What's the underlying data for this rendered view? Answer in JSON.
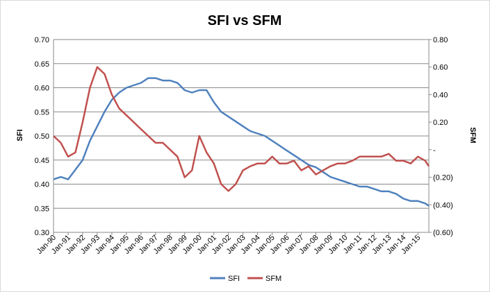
{
  "chart_data": {
    "type": "line",
    "title": "SFI vs SFM",
    "ylabel_left": "SFI",
    "ylabel_right": "SFM",
    "ylim_left": [
      0.3,
      0.7
    ],
    "ylim_right": [
      -0.6,
      0.8
    ],
    "yticks_left": [
      "0.30",
      "0.35",
      "0.40",
      "0.45",
      "0.50",
      "0.55",
      "0.60",
      "0.65",
      "0.70"
    ],
    "yticks_right": [
      "(0.60)",
      "(0.40)",
      "(0.20)",
      "-",
      "0.20",
      "0.40",
      "0.60",
      "0.80"
    ],
    "xticks": [
      "Jan-90",
      "Jan-91",
      "Jan-92",
      "Jan-93",
      "Jan-94",
      "Jan-95",
      "Jan-96",
      "Jan-97",
      "Jan-98",
      "Jan-99",
      "Jan-00",
      "Jan-01",
      "Jan-02",
      "Jan-03",
      "Jan-04",
      "Jan-05",
      "Jan-06",
      "Jan-07",
      "Jan-08",
      "Jan-09",
      "Jan-10",
      "Jan-11",
      "Jan-12",
      "Jan-13",
      "Jan-14",
      "Jan-15"
    ],
    "x_range": [
      1990.0,
      2015.75
    ],
    "grid": true,
    "legend_position": "bottom",
    "series": [
      {
        "name": "SFI",
        "axis": "left",
        "color": "#4f81bd",
        "x": [
          1990.0,
          1990.5,
          1991.0,
          1991.5,
          1992.0,
          1992.5,
          1993.0,
          1993.5,
          1994.0,
          1994.5,
          1995.0,
          1995.5,
          1996.0,
          1996.5,
          1997.0,
          1997.5,
          1998.0,
          1998.5,
          1999.0,
          1999.5,
          2000.0,
          2000.5,
          2001.0,
          2001.5,
          2002.0,
          2002.5,
          2003.0,
          2003.5,
          2004.0,
          2004.5,
          2005.0,
          2005.5,
          2006.0,
          2006.5,
          2007.0,
          2007.5,
          2008.0,
          2008.5,
          2009.0,
          2009.5,
          2010.0,
          2010.5,
          2011.0,
          2011.5,
          2012.0,
          2012.5,
          2013.0,
          2013.5,
          2014.0,
          2014.5,
          2015.0,
          2015.5,
          2015.75
        ],
        "values": [
          0.41,
          0.415,
          0.41,
          0.43,
          0.45,
          0.49,
          0.52,
          0.55,
          0.575,
          0.59,
          0.6,
          0.605,
          0.61,
          0.62,
          0.62,
          0.615,
          0.615,
          0.61,
          0.595,
          0.59,
          0.595,
          0.595,
          0.57,
          0.55,
          0.54,
          0.53,
          0.52,
          0.51,
          0.505,
          0.5,
          0.49,
          0.48,
          0.47,
          0.46,
          0.45,
          0.44,
          0.435,
          0.425,
          0.415,
          0.41,
          0.405,
          0.4,
          0.395,
          0.395,
          0.39,
          0.385,
          0.385,
          0.38,
          0.37,
          0.365,
          0.365,
          0.36,
          0.355
        ]
      },
      {
        "name": "SFM",
        "axis": "right",
        "color": "#c0504d",
        "x": [
          1990.0,
          1990.5,
          1991.0,
          1991.5,
          1992.0,
          1992.5,
          1993.0,
          1993.5,
          1994.0,
          1994.5,
          1995.0,
          1995.5,
          1996.0,
          1996.5,
          1997.0,
          1997.5,
          1998.0,
          1998.5,
          1999.0,
          1999.5,
          2000.0,
          2000.5,
          2001.0,
          2001.5,
          2002.0,
          2002.5,
          2003.0,
          2003.5,
          2004.0,
          2004.5,
          2005.0,
          2005.5,
          2006.0,
          2006.5,
          2007.0,
          2007.5,
          2008.0,
          2008.5,
          2009.0,
          2009.5,
          2010.0,
          2010.5,
          2011.0,
          2011.5,
          2012.0,
          2012.5,
          2013.0,
          2013.5,
          2014.0,
          2014.5,
          2015.0,
          2015.5,
          2015.75
        ],
        "values": [
          0.1,
          0.05,
          -0.05,
          -0.02,
          0.2,
          0.45,
          0.6,
          0.55,
          0.4,
          0.3,
          0.25,
          0.2,
          0.15,
          0.1,
          0.05,
          0.05,
          0.0,
          -0.05,
          -0.2,
          -0.15,
          0.1,
          -0.02,
          -0.1,
          -0.25,
          -0.3,
          -0.25,
          -0.15,
          -0.12,
          -0.1,
          -0.1,
          -0.05,
          -0.1,
          -0.1,
          -0.08,
          -0.15,
          -0.12,
          -0.18,
          -0.15,
          -0.12,
          -0.1,
          -0.1,
          -0.08,
          -0.05,
          -0.05,
          -0.05,
          -0.05,
          -0.03,
          -0.08,
          -0.08,
          -0.1,
          -0.05,
          -0.08,
          -0.12
        ]
      }
    ]
  }
}
